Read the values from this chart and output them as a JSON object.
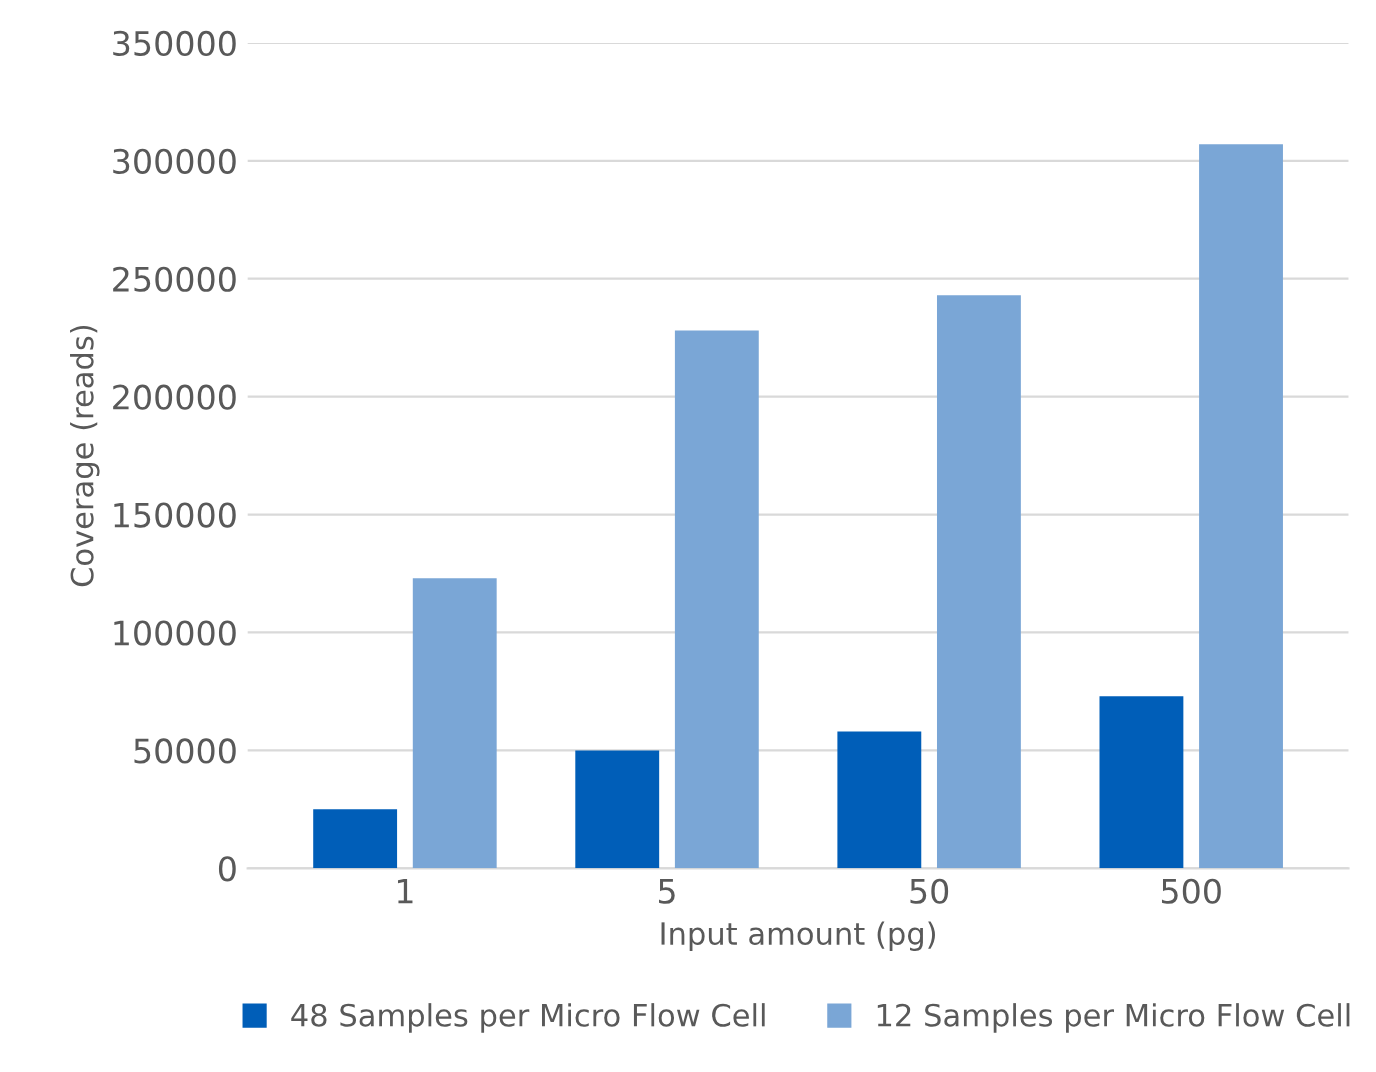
{
  "chart_data": {
    "type": "bar",
    "xlabel": "Input amount (pg)",
    "ylabel": "Coverage (reads)",
    "categories": [
      "1",
      "5",
      "50",
      "500"
    ],
    "series": [
      {
        "name": "48 Samples per Micro Flow Cell",
        "color": "#005eb8",
        "values": [
          25000,
          50000,
          58000,
          73000
        ]
      },
      {
        "name": "12 Samples per Micro Flow Cell",
        "color": "#7aa6d6",
        "values": [
          123000,
          228000,
          243000,
          307000
        ]
      }
    ],
    "ylim": [
      0,
      350000
    ],
    "yticks": [
      0,
      50000,
      100000,
      150000,
      200000,
      250000,
      300000,
      350000
    ],
    "grid": "y",
    "legend": "bottom"
  }
}
